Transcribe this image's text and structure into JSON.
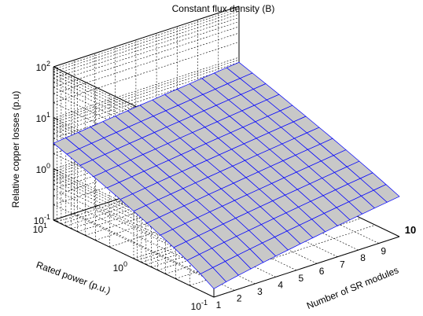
{
  "chart_data": {
    "type": "surface",
    "title": "Constant  flux density (B)",
    "xlabel": "Number of SR modules",
    "ylabel": "Rated power (p.u.)",
    "zlabel": "Relative copper losses (p.u)",
    "x_range": [
      1,
      10
    ],
    "x_ticks": [
      "1",
      "2",
      "3",
      "4",
      "5",
      "6",
      "7",
      "8",
      "9",
      "10"
    ],
    "y_range": [
      0.1,
      10
    ],
    "y_scale": "log",
    "y_ticks": [
      {
        "base": "10",
        "exp": "1"
      },
      {
        "base": "10",
        "exp": "0"
      },
      {
        "base": "10",
        "exp": "-1"
      }
    ],
    "z_range": [
      0.1,
      100
    ],
    "z_scale": "log",
    "z_ticks": [
      {
        "base": "10",
        "exp": "2"
      },
      {
        "base": "10",
        "exp": "1"
      },
      {
        "base": "10",
        "exp": "0"
      },
      {
        "base": "10",
        "exp": "-1"
      }
    ],
    "surface": {
      "description_values": "Relative copper losses vs number of modules and rated power",
      "z_min": 0.1,
      "z_max": 8,
      "edge_color": "#0000ff",
      "face_color": "#c8c8c8"
    },
    "grid": true
  }
}
